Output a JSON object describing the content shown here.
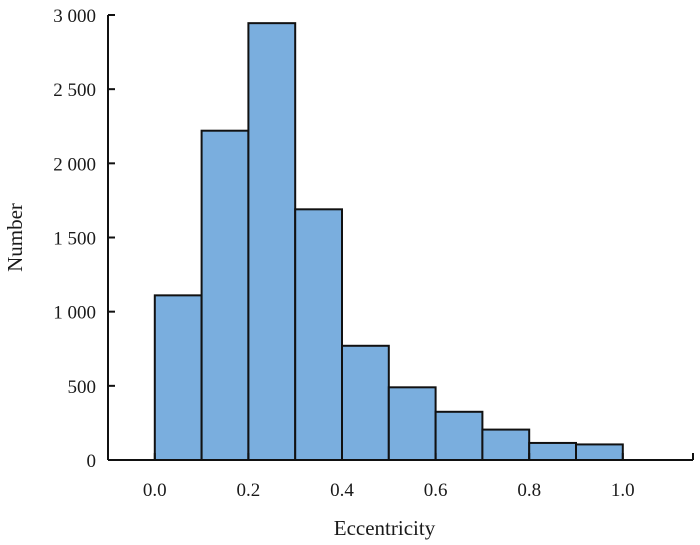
{
  "chart_data": {
    "type": "bar",
    "title": "",
    "xlabel": "Eccentricity",
    "ylabel": "Number",
    "bin_edges": [
      0.0,
      0.1,
      0.2,
      0.3,
      0.4,
      0.5,
      0.6,
      0.7,
      0.8,
      0.9,
      1.0
    ],
    "values": [
      1110,
      2220,
      2945,
      1690,
      770,
      490,
      325,
      205,
      115,
      105
    ],
    "xlim": [
      -0.1,
      1.15
    ],
    "ylim": [
      0,
      3000
    ],
    "xticks": [
      {
        "value": 0.0,
        "label": "0.0"
      },
      {
        "value": 0.2,
        "label": "0.2"
      },
      {
        "value": 0.4,
        "label": "0.4"
      },
      {
        "value": 0.6,
        "label": "0.6"
      },
      {
        "value": 0.8,
        "label": "0.8"
      },
      {
        "value": 1.0,
        "label": "1.0"
      }
    ],
    "yticks": [
      {
        "value": 0,
        "label": "0"
      },
      {
        "value": 500,
        "label": "500"
      },
      {
        "value": 1000,
        "label": "1 000"
      },
      {
        "value": 1500,
        "label": "1 500"
      },
      {
        "value": 2000,
        "label": "2 000"
      },
      {
        "value": 2500,
        "label": "2 500"
      },
      {
        "value": 3000,
        "label": "3 000"
      }
    ],
    "grid": false,
    "legend": "none",
    "colors": {
      "bar_fill": "#7aaede",
      "bar_edge": "#111111",
      "axis": "#111111"
    }
  }
}
